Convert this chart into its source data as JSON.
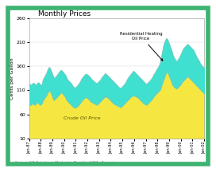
{
  "title": "Monthly Prices",
  "ylabel": "Cents per Gallon",
  "source": "Source: EIA Petroleum Marketing Monthly, 1987 - Present",
  "ylim": [
    10,
    260
  ],
  "yticks": [
    10,
    60,
    110,
    160,
    210,
    260
  ],
  "x_labels": [
    "Jan-87",
    "Jan-88",
    "Jan-89",
    "Jan-90",
    "Jan-91",
    "Jan-92",
    "Jan-93",
    "Jan-94",
    "Jan-95",
    "Jan-96",
    "Jan-97",
    "Jan-98",
    "Jan-99",
    "Jan-00",
    "Jan-01",
    "Jan-02"
  ],
  "crude_color": "#F5E642",
  "heating_color": "#40E0D0",
  "border_color": "#3CB371",
  "annotation_text": "Residential Heating\nOil Price",
  "crude_label": "Crude Oil Price",
  "n_points": 192,
  "crude_base": [
    80,
    80,
    80,
    82,
    84,
    82,
    80,
    82,
    84,
    86,
    84,
    82,
    80,
    82,
    84,
    90,
    92,
    95,
    98,
    100,
    105,
    108,
    110,
    108,
    105,
    100,
    95,
    90,
    92,
    94,
    96,
    98,
    100,
    102,
    104,
    106,
    105,
    103,
    100,
    98,
    95,
    90,
    88,
    86,
    84,
    82,
    80,
    78,
    76,
    75,
    74,
    75,
    76,
    78,
    80,
    82,
    85,
    88,
    90,
    92,
    94,
    95,
    96,
    95,
    94,
    92,
    90,
    88,
    86,
    85,
    84,
    83,
    82,
    81,
    80,
    82,
    84,
    86,
    88,
    90,
    92,
    94,
    96,
    98,
    97,
    96,
    95,
    93,
    91,
    89,
    87,
    85,
    83,
    82,
    81,
    80,
    79,
    78,
    77,
    76,
    75,
    77,
    79,
    81,
    83,
    85,
    87,
    89,
    91,
    93,
    95,
    97,
    98,
    99,
    100,
    99,
    98,
    97,
    96,
    95,
    93,
    91,
    89,
    87,
    85,
    83,
    82,
    81,
    80,
    82,
    84,
    86,
    88,
    90,
    92,
    95,
    98,
    100,
    102,
    104,
    106,
    108,
    110,
    112,
    118,
    125,
    130,
    135,
    140,
    145,
    150,
    148,
    145,
    140,
    135,
    130,
    125,
    120,
    118,
    116,
    115,
    114,
    116,
    118,
    120,
    122,
    125,
    128,
    130,
    132,
    134,
    136,
    138,
    140,
    138,
    136,
    134,
    132,
    130,
    128,
    126,
    124,
    122,
    120,
    118,
    116,
    114,
    112,
    110,
    108,
    106,
    104
  ],
  "heating_top": [
    125,
    122,
    120,
    122,
    124,
    125,
    123,
    121,
    122,
    124,
    126,
    125,
    122,
    120,
    121,
    130,
    135,
    138,
    142,
    145,
    150,
    155,
    158,
    155,
    150,
    145,
    140,
    135,
    136,
    138,
    140,
    142,
    145,
    148,
    150,
    152,
    150,
    148,
    145,
    143,
    140,
    135,
    132,
    130,
    128,
    126,
    124,
    120,
    118,
    116,
    115,
    116,
    118,
    120,
    122,
    125,
    128,
    132,
    135,
    138,
    140,
    142,
    144,
    143,
    142,
    140,
    138,
    136,
    133,
    131,
    130,
    128,
    126,
    125,
    124,
    126,
    128,
    130,
    132,
    135,
    138,
    140,
    142,
    145,
    143,
    142,
    140,
    138,
    136,
    134,
    132,
    130,
    128,
    126,
    124,
    122,
    120,
    118,
    116,
    115,
    114,
    116,
    118,
    120,
    122,
    125,
    128,
    132,
    135,
    138,
    140,
    143,
    145,
    148,
    150,
    148,
    146,
    144,
    142,
    140,
    138,
    136,
    134,
    132,
    130,
    128,
    126,
    124,
    122,
    124,
    126,
    128,
    130,
    132,
    135,
    138,
    142,
    145,
    148,
    152,
    155,
    158,
    162,
    165,
    175,
    185,
    195,
    205,
    210,
    215,
    218,
    215,
    210,
    205,
    200,
    195,
    188,
    182,
    178,
    175,
    172,
    170,
    172,
    175,
    178,
    182,
    186,
    190,
    195,
    198,
    200,
    202,
    204,
    206,
    204,
    202,
    200,
    198,
    196,
    194,
    190,
    186,
    182,
    178,
    175,
    172,
    168,
    165,
    162,
    160,
    158,
    156
  ]
}
